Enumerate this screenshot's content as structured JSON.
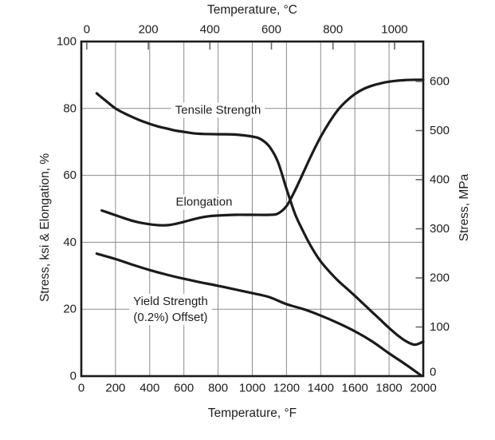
{
  "chart_data": {
    "type": "line",
    "title": "",
    "grid": true,
    "colors": {
      "line": "#1b1b1b",
      "grid": "#8a8a8a",
      "tick": "#666666",
      "border": "#1b1b1b",
      "text": "#1d1d1f",
      "background": "#ffffff"
    },
    "axes": {
      "top": {
        "label": "Temperature, °C",
        "ticks": [
          0,
          200,
          400,
          600,
          800,
          1000
        ]
      },
      "bottom": {
        "label": "Temperature, °F",
        "ticks": [
          0,
          200,
          400,
          600,
          800,
          1000,
          1200,
          1400,
          1600,
          1800,
          2000
        ],
        "range": [
          0,
          2000
        ]
      },
      "left": {
        "label": "Stress, ksi & Elongation, %",
        "ticks": [
          0,
          20,
          40,
          60,
          80,
          100
        ],
        "range": [
          0,
          100
        ],
        "gridline_values": [
          20,
          40,
          60,
          80
        ]
      },
      "right": {
        "label": "Stress, MPa",
        "ticks": [
          600,
          500,
          400,
          300,
          200,
          100,
          0
        ],
        "range": [
          0,
          620
        ]
      }
    },
    "series": [
      {
        "name": "Tensile Strength",
        "label_lines": [
          "Tensile Strength"
        ],
        "label_at": {
          "f": 800,
          "v": 79.5
        },
        "points": [
          [
            90,
            84.5
          ],
          [
            150,
            82
          ],
          [
            200,
            80
          ],
          [
            250,
            78.6
          ],
          [
            300,
            77.4
          ],
          [
            350,
            76.3
          ],
          [
            400,
            75.4
          ],
          [
            450,
            74.6
          ],
          [
            500,
            74
          ],
          [
            550,
            73.4
          ],
          [
            600,
            73
          ],
          [
            650,
            72.6
          ],
          [
            700,
            72.4
          ],
          [
            800,
            72.3
          ],
          [
            900,
            72.2
          ],
          [
            1000,
            71.6
          ],
          [
            1050,
            70.8
          ],
          [
            1100,
            68.6
          ],
          [
            1150,
            64
          ],
          [
            1200,
            56
          ],
          [
            1250,
            48.5
          ],
          [
            1300,
            43
          ],
          [
            1350,
            38.2
          ],
          [
            1400,
            34.3
          ],
          [
            1450,
            31.3
          ],
          [
            1500,
            28.6
          ],
          [
            1550,
            26.3
          ],
          [
            1600,
            24
          ],
          [
            1650,
            21.6
          ],
          [
            1700,
            19.2
          ],
          [
            1750,
            16.8
          ],
          [
            1800,
            14.4
          ],
          [
            1850,
            12.2
          ],
          [
            1900,
            10.4
          ],
          [
            1950,
            9.4
          ],
          [
            2000,
            10.3
          ]
        ]
      },
      {
        "name": "Elongation",
        "label_lines": [
          "Elongation"
        ],
        "label_at": {
          "f": 718,
          "v": 52
        },
        "points": [
          [
            120,
            49.5
          ],
          [
            200,
            48.1
          ],
          [
            250,
            47.2
          ],
          [
            300,
            46.4
          ],
          [
            350,
            45.8
          ],
          [
            400,
            45.4
          ],
          [
            450,
            45.1
          ],
          [
            500,
            45.1
          ],
          [
            550,
            45.5
          ],
          [
            600,
            46.1
          ],
          [
            650,
            46.8
          ],
          [
            700,
            47.4
          ],
          [
            750,
            47.8
          ],
          [
            800,
            48
          ],
          [
            900,
            48.2
          ],
          [
            1000,
            48.2
          ],
          [
            1100,
            48.2
          ],
          [
            1150,
            48.6
          ],
          [
            1200,
            50.8
          ],
          [
            1250,
            55.5
          ],
          [
            1300,
            61
          ],
          [
            1350,
            66.5
          ],
          [
            1400,
            71.5
          ],
          [
            1450,
            75.8
          ],
          [
            1500,
            79.5
          ],
          [
            1550,
            82.2
          ],
          [
            1600,
            84.3
          ],
          [
            1650,
            85.8
          ],
          [
            1700,
            86.8
          ],
          [
            1750,
            87.5
          ],
          [
            1800,
            88
          ],
          [
            1850,
            88.3
          ],
          [
            1900,
            88.5
          ],
          [
            2000,
            88.6
          ]
        ]
      },
      {
        "name": "Yield Strength (0.2%) Offset)",
        "label_lines": [
          "Yield Strength",
          "(0.2%) Offset)"
        ],
        "label_at": {
          "f": 522,
          "v": 22.3
        },
        "points": [
          [
            90,
            36.6
          ],
          [
            200,
            35
          ],
          [
            300,
            33.3
          ],
          [
            400,
            31.7
          ],
          [
            500,
            30.3
          ],
          [
            600,
            29.1
          ],
          [
            700,
            28
          ],
          [
            800,
            27
          ],
          [
            900,
            25.9
          ],
          [
            1000,
            24.8
          ],
          [
            1100,
            23.6
          ],
          [
            1200,
            21.5
          ],
          [
            1300,
            20
          ],
          [
            1400,
            18.1
          ],
          [
            1500,
            15.9
          ],
          [
            1600,
            13.4
          ],
          [
            1700,
            10.4
          ],
          [
            1800,
            6.8
          ],
          [
            1900,
            3.4
          ],
          [
            1990,
            0.1
          ]
        ]
      }
    ]
  }
}
